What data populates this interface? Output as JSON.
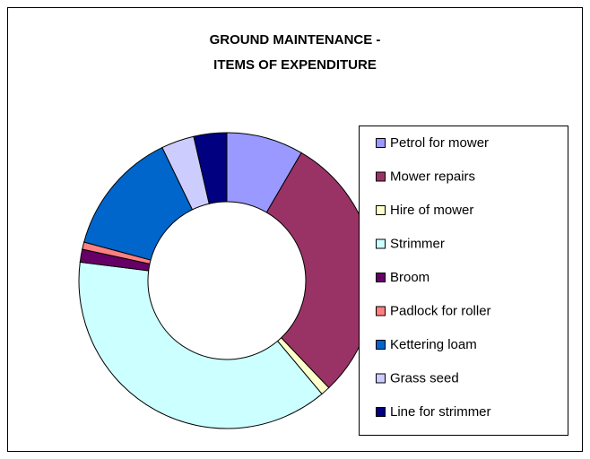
{
  "chart_data": {
    "type": "donut",
    "title": [
      "GROUND MAINTENANCE -",
      "ITEMS OF EXPENDITURE"
    ],
    "categories": [
      "Petrol for mower",
      "Mower repairs",
      "Hire of mower",
      "Strimmer",
      "Broom",
      "Padlock for roller",
      "Kettering loam",
      "Grass seed",
      "Line for strimmer"
    ],
    "values": [
      8.4,
      29.5,
      1.0,
      38.1,
      1.4,
      0.8,
      13.6,
      3.6,
      3.6
    ],
    "colors": [
      "#9999ff",
      "#993366",
      "#ffffcc",
      "#ccffff",
      "#660066",
      "#ff8080",
      "#0066cc",
      "#ccccff",
      "#000080"
    ],
    "legend": "right"
  }
}
